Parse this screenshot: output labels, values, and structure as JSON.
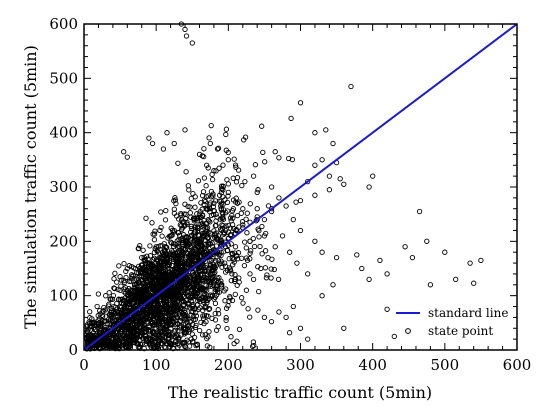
{
  "chart_data": {
    "type": "scatter",
    "xlabel": "The realistic traffic count (5min)",
    "ylabel": "The simulation traffic count (5min)",
    "xlim": [
      0,
      600
    ],
    "ylim": [
      0,
      600
    ],
    "x_ticks": [
      "0",
      "100",
      "200",
      "300",
      "400",
      "500",
      "600"
    ],
    "y_ticks": [
      "0",
      "100",
      "200",
      "300",
      "400",
      "500",
      "600"
    ],
    "grid": false,
    "legend": {
      "position": "bottom-right",
      "entries": [
        {
          "label": "standard line",
          "kind": "line",
          "color": "#1a1ad6"
        },
        {
          "label": "state point",
          "kind": "marker",
          "color": "#000000"
        }
      ]
    },
    "series": [
      {
        "name": "standard line",
        "kind": "line",
        "x": [
          0,
          600
        ],
        "y": [
          0,
          600
        ],
        "color": "#1a1ad6"
      },
      {
        "name": "state point",
        "kind": "scatter",
        "marker": "hollow-circle",
        "color": "#000000",
        "x": [
          140,
          142,
          135,
          150,
          370,
          535,
          540,
          550,
          465,
          475,
          378,
          410,
          445,
          455,
          420,
          500,
          515,
          480,
          300,
          265,
          320,
          335,
          345,
          350,
          330,
          355,
          395,
          400,
          320,
          340,
          310,
          240,
          260,
          235,
          180,
          200,
          185,
          170,
          140,
          55,
          60,
          90,
          95,
          115,
          110,
          125,
          160,
          175,
          420,
          360,
          430,
          395,
          385,
          350,
          345,
          330,
          290,
          280,
          300,
          310,
          250,
          270,
          330,
          320,
          300,
          290,
          260,
          270,
          250,
          240,
          230,
          310,
          295,
          285,
          275,
          265,
          255,
          245,
          235,
          225,
          215,
          205,
          195,
          185,
          175,
          165,
          155,
          145,
          135,
          125,
          115,
          105,
          95,
          85,
          75,
          65,
          55,
          45,
          35,
          25,
          15,
          10,
          20,
          30,
          40,
          50,
          60,
          70,
          80,
          90,
          100,
          110,
          120,
          130,
          140,
          150,
          160,
          170,
          180,
          190,
          200,
          210,
          220,
          230,
          240,
          260,
          280,
          300,
          320,
          340,
          360,
          250,
          230,
          210,
          190,
          170,
          150,
          130,
          110,
          90,
          70,
          50,
          30,
          60,
          80,
          100,
          120,
          140,
          160,
          180,
          200,
          220,
          240,
          120,
          100,
          80,
          60,
          40,
          20,
          130,
          150,
          170,
          190,
          210,
          230,
          95,
          105,
          115,
          125,
          135,
          145,
          155,
          165,
          175,
          185,
          195,
          85,
          75,
          65,
          55,
          45,
          35,
          25
        ],
        "y": [
          590,
          578,
          600,
          565,
          485,
          160,
          123,
          165,
          255,
          200,
          175,
          165,
          190,
          170,
          140,
          180,
          130,
          120,
          455,
          365,
          400,
          405,
          380,
          345,
          350,
          315,
          300,
          320,
          340,
          320,
          310,
          290,
          300,
          320,
          330,
          350,
          370,
          340,
          405,
          365,
          355,
          390,
          380,
          400,
          370,
          380,
          360,
          380,
          75,
          40,
          25,
          130,
          150,
          170,
          120,
          100,
          80,
          60,
          40,
          20,
          60,
          70,
          180,
          200,
          220,
          240,
          260,
          280,
          240,
          260,
          200,
          140,
          160,
          180,
          210,
          190,
          170,
          150,
          130,
          110,
          125,
          140,
          160,
          180,
          150,
          130,
          110,
          100,
          90,
          80,
          70,
          60,
          50,
          40,
          30,
          20,
          10,
          5,
          8,
          12,
          15,
          20,
          25,
          35,
          45,
          55,
          65,
          75,
          85,
          95,
          105,
          115,
          125,
          135,
          145,
          155,
          165,
          175,
          185,
          195,
          205,
          215,
          225,
          235,
          245,
          255,
          265,
          275,
          285,
          295,
          305,
          210,
          200,
          190,
          180,
          170,
          160,
          150,
          140,
          130,
          120,
          110,
          100,
          150,
          170,
          190,
          210,
          230,
          250,
          270,
          290,
          260,
          240,
          70,
          60,
          50,
          40,
          30,
          20,
          90,
          100,
          110,
          120,
          130,
          140,
          130,
          125,
          135,
          145,
          155,
          165,
          175,
          185,
          195,
          205,
          215,
          115,
          105,
          95,
          85,
          75,
          65,
          55
        ]
      }
    ]
  }
}
